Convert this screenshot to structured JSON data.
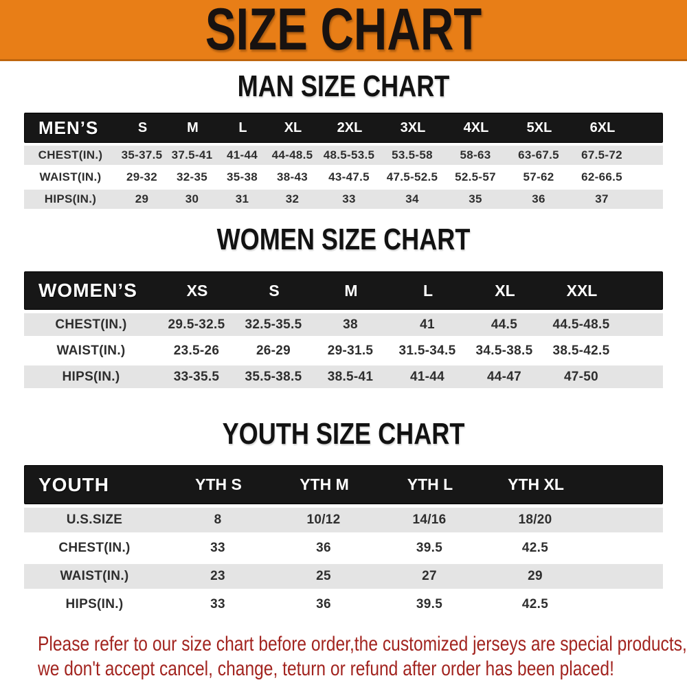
{
  "banner": {
    "title": "SIZE CHART"
  },
  "men": {
    "heading": "MAN SIZE CHART",
    "label": "MEN’S",
    "sizes": [
      "S",
      "M",
      "L",
      "XL",
      "2XL",
      "3XL",
      "4XL",
      "5XL",
      "6XL"
    ],
    "rows": [
      {
        "label": "CHEST(IN.)",
        "values": [
          "35-37.5",
          "37.5-41",
          "41-44",
          "44-48.5",
          "48.5-53.5",
          "53.5-58",
          "58-63",
          "63-67.5",
          "67.5-72"
        ]
      },
      {
        "label": "WAIST(IN.)",
        "values": [
          "29-32",
          "32-35",
          "35-38",
          "38-43",
          "43-47.5",
          "47.5-52.5",
          "52.5-57",
          "57-62",
          "62-66.5"
        ]
      },
      {
        "label": "HIPS(IN.)",
        "values": [
          "29",
          "30",
          "31",
          "32",
          "33",
          "34",
          "35",
          "36",
          "37"
        ]
      }
    ]
  },
  "women": {
    "heading": "WOMEN SIZE CHART",
    "label": "WOMEN’S",
    "sizes": [
      "XS",
      "S",
      "M",
      "L",
      "XL",
      "XXL"
    ],
    "rows": [
      {
        "label": "CHEST(IN.)",
        "values": [
          "29.5-32.5",
          "32.5-35.5",
          "38",
          "41",
          "44.5",
          "44.5-48.5"
        ]
      },
      {
        "label": "WAIST(IN.)",
        "values": [
          "23.5-26",
          "26-29",
          "29-31.5",
          "31.5-34.5",
          "34.5-38.5",
          "38.5-42.5"
        ]
      },
      {
        "label": "HIPS(IN.)",
        "values": [
          "33-35.5",
          "35.5-38.5",
          "38.5-41",
          "41-44",
          "44-47",
          "47-50"
        ]
      }
    ]
  },
  "youth": {
    "heading": "YOUTH SIZE CHART",
    "label": "YOUTH",
    "sizes": [
      "YTH S",
      "YTH M",
      "YTH L",
      "YTH XL"
    ],
    "rows": [
      {
        "label": "U.S.SIZE",
        "values": [
          "8",
          "10/12",
          "14/16",
          "18/20"
        ]
      },
      {
        "label": "CHEST(IN.)",
        "values": [
          "33",
          "36",
          "39.5",
          "42.5"
        ]
      },
      {
        "label": "WAIST(IN.)",
        "values": [
          "23",
          "25",
          "27",
          "29"
        ]
      },
      {
        "label": "HIPS(IN.)",
        "values": [
          "33",
          "36",
          "39.5",
          "42.5"
        ]
      }
    ]
  },
  "note": {
    "line1": "Please refer to our size chart before order,the customized jerseys are special products,",
    "line2": "we don't accept cancel, change, teturn or refund after order has been placed!"
  },
  "colors": {
    "banner_bg": "#e87e17",
    "bar_bg": "#171717",
    "alt_bg": "#e4e4e4",
    "note_color": "#a2241f"
  }
}
